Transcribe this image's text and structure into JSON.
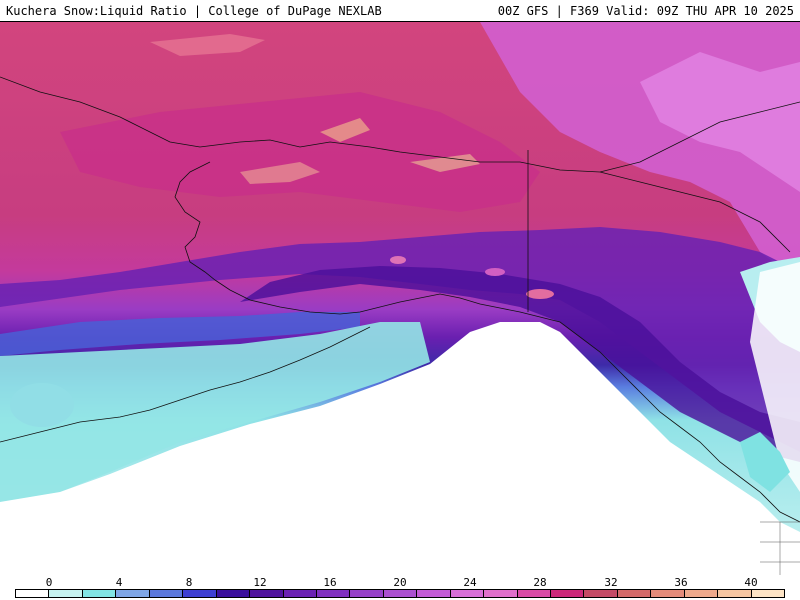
{
  "header": {
    "title_left": "Kuchera Snow:Liquid Ratio | College of DuPage NEXLAB",
    "title_right": "00Z GFS | F369 Valid: 09Z THU APR 10 2025"
  },
  "legend": {
    "ticks": [
      "0",
      "4",
      "8",
      "12",
      "16",
      "20",
      "24",
      "28",
      "32",
      "36",
      "40"
    ],
    "colors": [
      "#ffffff",
      "#c7f2f0",
      "#82e4e4",
      "#7fa6e6",
      "#5b78dc",
      "#3d3fd2",
      "#3a0f9c",
      "#50139e",
      "#6b21b3",
      "#8030c0",
      "#9640c8",
      "#ab4fd0",
      "#c35ad6",
      "#d86fd8",
      "#e070cc",
      "#d94aa6",
      "#cc287a",
      "#c44a66",
      "#d46a6a",
      "#e48b7a",
      "#eea98c",
      "#f6c6a2",
      "#fde4c6"
    ]
  }
}
